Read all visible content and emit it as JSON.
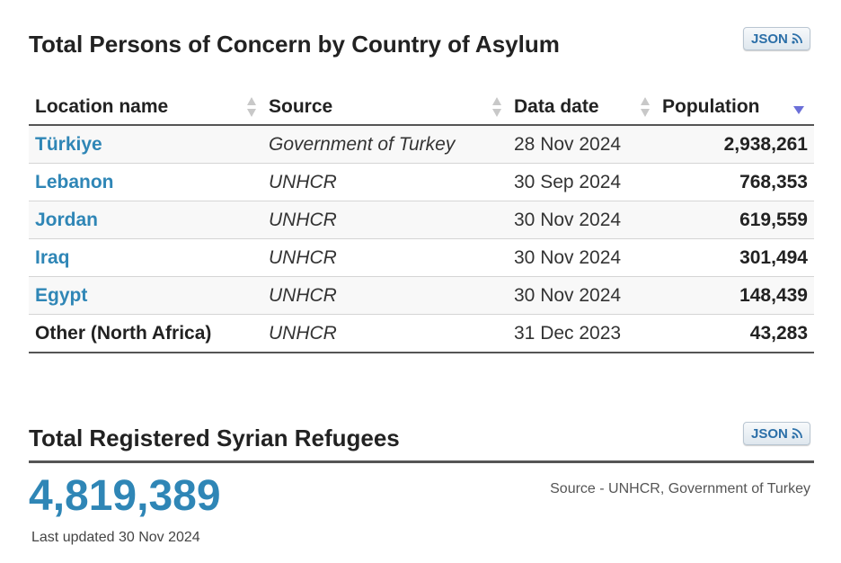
{
  "concern": {
    "title": "Total Persons of Concern by Country of Asylum",
    "json_label": "JSON",
    "columns": [
      "Location name",
      "Source",
      "Data date",
      "Population"
    ],
    "rows": [
      {
        "location": "Türkiye",
        "source": "Government of Turkey",
        "date": "28 Nov 2024",
        "population": "2,938,261"
      },
      {
        "location": "Lebanon",
        "source": "UNHCR",
        "date": "30 Sep 2024",
        "population": "768,353"
      },
      {
        "location": "Jordan",
        "source": "UNHCR",
        "date": "30 Nov 2024",
        "population": "619,559"
      },
      {
        "location": "Iraq",
        "source": "UNHCR",
        "date": "30 Nov 2024",
        "population": "301,494"
      },
      {
        "location": "Egypt",
        "source": "UNHCR",
        "date": "30 Nov 2024",
        "population": "148,439"
      },
      {
        "location": "Other (North Africa)",
        "source": "UNHCR",
        "date": "31 Dec 2023",
        "population": "43,283"
      }
    ]
  },
  "registered": {
    "title": "Total Registered Syrian Refugees",
    "json_label": "JSON",
    "total": "4,819,389",
    "last_updated": "Last updated 30 Nov 2024",
    "source": "Source - UNHCR, Government of Turkey"
  },
  "colors": {
    "link": "#2f86b6",
    "sort_active": "#6b6fd8",
    "sort_inactive": "#c8c8c8"
  },
  "icons": {
    "json_button": "rss-icon",
    "sortable": "sort-arrows-icon",
    "sorted_desc": "sort-desc-icon"
  }
}
